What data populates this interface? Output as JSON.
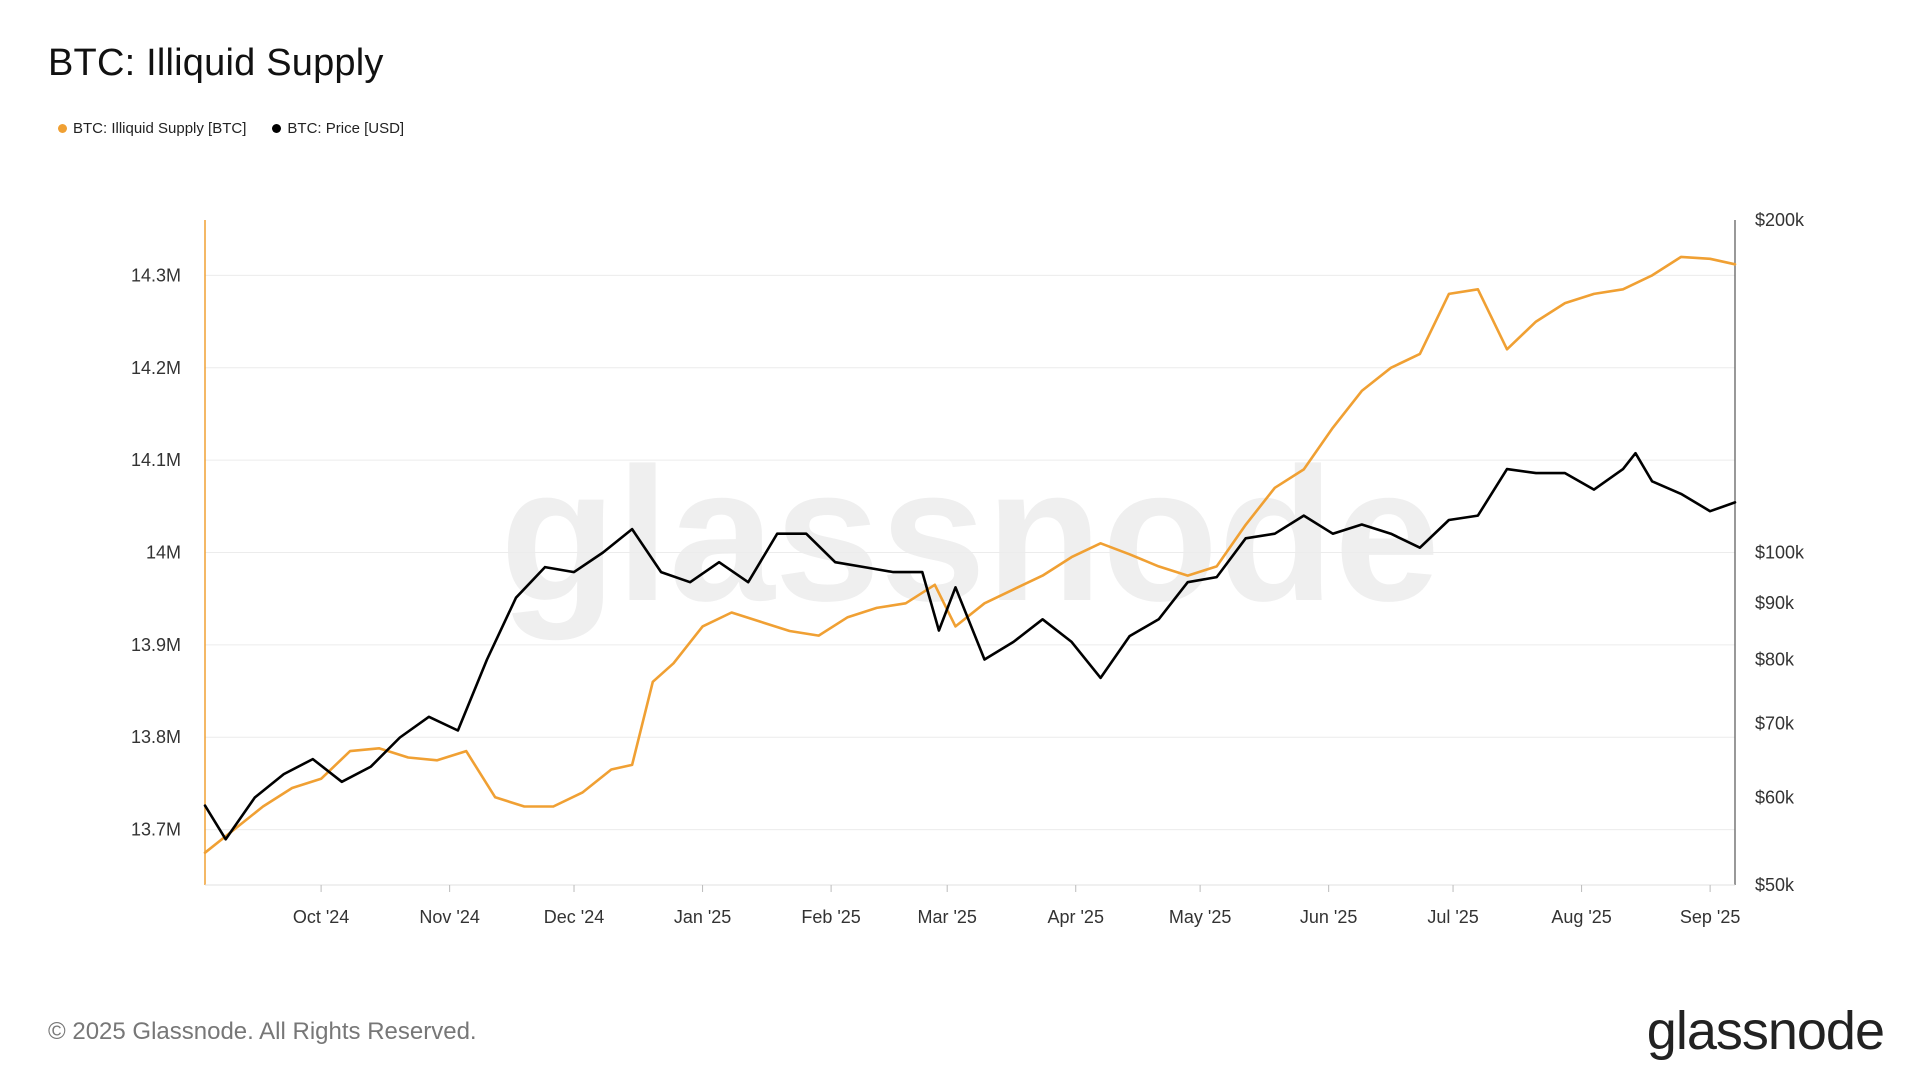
{
  "chart_data": {
    "type": "line",
    "title": "BTC: Illiquid Supply",
    "watermark": "glassnode",
    "legend_position": "top-left",
    "grid": true,
    "x_ticks": [
      "Oct '24",
      "Nov '24",
      "Dec '24",
      "Jan '25",
      "Feb '25",
      "Mar '25",
      "Apr '25",
      "May '25",
      "Jun '25",
      "Jul '25",
      "Aug '25",
      "Sep '25"
    ],
    "x_range": [
      "2024-09-03",
      "2025-09-07"
    ],
    "y_left": {
      "ylim": [
        13640000,
        14360000
      ],
      "ticks": [
        13700000,
        13800000,
        13900000,
        14000000,
        14100000,
        14200000,
        14300000
      ],
      "tick_labels": [
        "13.7M",
        "13.8M",
        "13.9M",
        "14M",
        "14.1M",
        "14.2M",
        "14.3M"
      ]
    },
    "y_right": {
      "scale": "log",
      "ylim": [
        50000,
        200000
      ],
      "ticks": [
        50000,
        60000,
        70000,
        80000,
        90000,
        100000,
        200000
      ],
      "tick_labels": [
        "$50k",
        "$60k",
        "$70k",
        "$80k",
        "$90k",
        "$100k",
        "$200k"
      ]
    },
    "series": [
      {
        "name": "BTC: Illiquid Supply [BTC]",
        "axis": "left",
        "color": "#f0a033",
        "x": [
          "2024-09-03",
          "2024-09-10",
          "2024-09-17",
          "2024-09-24",
          "2024-10-01",
          "2024-10-08",
          "2024-10-15",
          "2024-10-22",
          "2024-10-29",
          "2024-11-05",
          "2024-11-12",
          "2024-11-19",
          "2024-11-26",
          "2024-12-03",
          "2024-12-10",
          "2024-12-15",
          "2024-12-20",
          "2024-12-25",
          "2025-01-01",
          "2025-01-08",
          "2025-01-15",
          "2025-01-22",
          "2025-01-29",
          "2025-02-05",
          "2025-02-12",
          "2025-02-19",
          "2025-02-26",
          "2025-03-03",
          "2025-03-10",
          "2025-03-17",
          "2025-03-24",
          "2025-03-31",
          "2025-04-07",
          "2025-04-14",
          "2025-04-21",
          "2025-04-28",
          "2025-05-05",
          "2025-05-12",
          "2025-05-19",
          "2025-05-26",
          "2025-06-02",
          "2025-06-09",
          "2025-06-16",
          "2025-06-23",
          "2025-06-30",
          "2025-07-07",
          "2025-07-14",
          "2025-07-21",
          "2025-07-28",
          "2025-08-04",
          "2025-08-11",
          "2025-08-18",
          "2025-08-25",
          "2025-09-01",
          "2025-09-07"
        ],
        "values": [
          13675000,
          13700000,
          13725000,
          13745000,
          13755000,
          13785000,
          13788000,
          13778000,
          13775000,
          13785000,
          13735000,
          13725000,
          13725000,
          13740000,
          13765000,
          13770000,
          13860000,
          13880000,
          13920000,
          13935000,
          13925000,
          13915000,
          13910000,
          13930000,
          13940000,
          13945000,
          13965000,
          13920000,
          13945000,
          13960000,
          13975000,
          13995000,
          14010000,
          13998000,
          13985000,
          13975000,
          13985000,
          14030000,
          14070000,
          14090000,
          14135000,
          14175000,
          14200000,
          14215000,
          14280000,
          14285000,
          14220000,
          14250000,
          14270000,
          14280000,
          14285000,
          14300000,
          14320000,
          14318000,
          14312000
        ]
      },
      {
        "name": "BTC: Price [USD]",
        "axis": "right",
        "color": "#000000",
        "x": [
          "2024-09-03",
          "2024-09-08",
          "2024-09-15",
          "2024-09-22",
          "2024-09-29",
          "2024-10-06",
          "2024-10-13",
          "2024-10-20",
          "2024-10-27",
          "2024-11-03",
          "2024-11-10",
          "2024-11-17",
          "2024-11-24",
          "2024-12-01",
          "2024-12-08",
          "2024-12-15",
          "2024-12-22",
          "2024-12-29",
          "2025-01-05",
          "2025-01-12",
          "2025-01-19",
          "2025-01-26",
          "2025-02-02",
          "2025-02-09",
          "2025-02-16",
          "2025-02-23",
          "2025-02-27",
          "2025-03-03",
          "2025-03-10",
          "2025-03-17",
          "2025-03-24",
          "2025-03-31",
          "2025-04-07",
          "2025-04-14",
          "2025-04-21",
          "2025-04-28",
          "2025-05-05",
          "2025-05-12",
          "2025-05-19",
          "2025-05-26",
          "2025-06-02",
          "2025-06-09",
          "2025-06-16",
          "2025-06-23",
          "2025-06-30",
          "2025-07-07",
          "2025-07-14",
          "2025-07-21",
          "2025-07-28",
          "2025-08-04",
          "2025-08-11",
          "2025-08-14",
          "2025-08-18",
          "2025-08-25",
          "2025-09-01",
          "2025-09-07"
        ],
        "values": [
          59000,
          55000,
          60000,
          63000,
          65000,
          62000,
          64000,
          68000,
          71000,
          69000,
          80000,
          91000,
          97000,
          96000,
          100000,
          105000,
          96000,
          94000,
          98000,
          94000,
          104000,
          104000,
          98000,
          97000,
          96000,
          96000,
          85000,
          93000,
          80000,
          83000,
          87000,
          83000,
          77000,
          84000,
          87000,
          94000,
          95000,
          103000,
          104000,
          108000,
          104000,
          106000,
          104000,
          101000,
          107000,
          108000,
          119000,
          118000,
          118000,
          114000,
          119000,
          123000,
          116000,
          113000,
          109000,
          111000
        ]
      }
    ]
  },
  "footer": {
    "copyright": "© 2025 Glassnode. All Rights Reserved.",
    "logo": "glassnode"
  }
}
